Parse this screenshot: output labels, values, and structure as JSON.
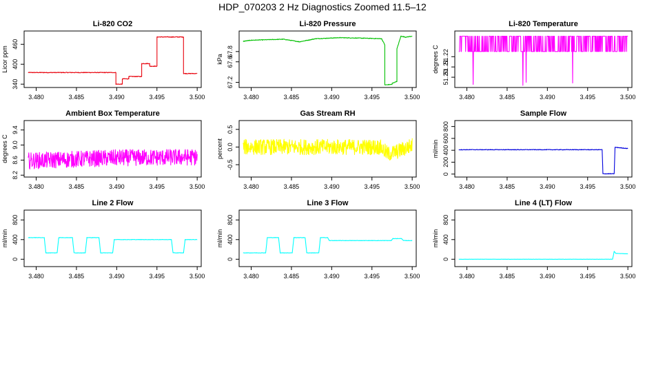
{
  "figure_title": "HDP_070203  2 Hz Diagnostics Zoomed 11.5–12",
  "chart_data": [
    {
      "type": "line",
      "title": "Li-820 CO2",
      "ylabel": "Licor ppm",
      "color": "#e8000b",
      "xlim": [
        3.4785,
        3.5005
      ],
      "xticks": [
        "3.480",
        "3.485",
        "3.490",
        "3.495",
        "3.500"
      ],
      "ylim": [
        330,
        500
      ],
      "yticks": [
        "340",
        "400",
        "460"
      ],
      "noise": 1,
      "spikes": false,
      "x": [
        3.479,
        3.4899,
        3.4899,
        3.4907,
        3.4907,
        3.4915,
        3.4915,
        3.4931,
        3.4931,
        3.4941,
        3.4941,
        3.495,
        3.495,
        3.4968,
        3.4968,
        3.4983,
        3.4983,
        3.5
      ],
      "y": [
        375,
        375,
        340,
        340,
        356,
        356,
        363,
        363,
        402,
        402,
        394,
        394,
        482,
        482,
        482,
        482,
        372,
        372
      ]
    },
    {
      "type": "line",
      "title": "Li-820 Pressure",
      "ylabel": "kPa",
      "color": "#00c000",
      "xlim": [
        3.4785,
        3.5005
      ],
      "xticks": [
        "3.480",
        "3.485",
        "3.490",
        "3.495",
        "3.500"
      ],
      "ylim": [
        67.1,
        68.2
      ],
      "yticks": [
        "67.2",
        "67.6",
        "67.8"
      ],
      "noise": 0.006,
      "spikes": false,
      "x": [
        3.479,
        3.48,
        3.484,
        3.486,
        3.488,
        3.491,
        3.494,
        3.4962,
        3.4966,
        3.4966,
        3.4975,
        3.4975,
        3.4981,
        3.4981,
        3.4986,
        3.4992,
        3.5
      ],
      "y": [
        68.0,
        68.02,
        68.04,
        67.99,
        68.05,
        68.07,
        68.06,
        68.05,
        67.93,
        67.15,
        67.16,
        67.18,
        67.22,
        67.85,
        68.1,
        68.08,
        68.1
      ]
    },
    {
      "type": "line",
      "title": "Li-820 Temperature",
      "ylabel": "degrees C",
      "color": "#ff00ff",
      "xlim": [
        3.4785,
        3.5005
      ],
      "xticks": [
        "3.480",
        "3.485",
        "3.490",
        "3.495",
        "3.500"
      ],
      "ylim": [
        51.19,
        51.245
      ],
      "yticks": [
        "51.20",
        "51.21",
        "51.22"
      ],
      "noise": 0,
      "spikes": true,
      "spike_high": 51.24,
      "spike_low": 51.225,
      "x": [
        3.479,
        3.5
      ],
      "y": [
        51.225,
        51.225
      ]
    },
    {
      "type": "line",
      "title": "Ambient Box Temperature",
      "ylabel": "degrees C",
      "color": "#ff00ff",
      "xlim": [
        3.4785,
        3.5005
      ],
      "xticks": [
        "3.480",
        "3.485",
        "3.490",
        "3.495",
        "3.500"
      ],
      "ylim": [
        8.15,
        9.65
      ],
      "yticks": [
        "8.2",
        "8.6",
        "9.0",
        "9.4"
      ],
      "noise": 0.22,
      "spikes": false,
      "x": [
        3.479,
        3.49,
        3.5
      ],
      "y": [
        8.58,
        8.66,
        8.68
      ]
    },
    {
      "type": "line",
      "title": "Gas Stream RH",
      "ylabel": "percent",
      "color": "#ffff00",
      "xlim": [
        3.4785,
        3.5005
      ],
      "xticks": [
        "3.480",
        "3.485",
        "3.490",
        "3.495",
        "3.500"
      ],
      "ylim": [
        -0.85,
        0.75
      ],
      "yticks": [
        "-0.5",
        "0.0",
        "0.5"
      ],
      "noise": 0.22,
      "spikes": false,
      "x": [
        3.479,
        3.496,
        3.497,
        3.4985,
        3.5
      ],
      "y": [
        0.0,
        0.0,
        -0.2,
        -0.1,
        0.05
      ]
    },
    {
      "type": "line",
      "title": "Sample Flow",
      "ylabel": "ml/min",
      "color": "#0000dd",
      "xlim": [
        3.4785,
        3.5005
      ],
      "xticks": [
        "3.480",
        "3.485",
        "3.490",
        "3.495",
        "3.500"
      ],
      "ylim": [
        -50,
        900
      ],
      "yticks": [
        "0",
        "200",
        "400",
        "600",
        "800"
      ],
      "noise": 5,
      "spikes": false,
      "x": [
        3.479,
        3.4968,
        3.4969,
        3.4983,
        3.4984,
        3.5
      ],
      "y": [
        410,
        410,
        5,
        5,
        450,
        430
      ]
    },
    {
      "type": "line",
      "title": "Line 2 Flow",
      "ylabel": "ml/min",
      "color": "#00ffff",
      "xlim": [
        3.4785,
        3.5005
      ],
      "xticks": [
        "3.480",
        "3.485",
        "3.490",
        "3.495",
        "3.500"
      ],
      "ylim": [
        -150,
        1000
      ],
      "yticks": [
        "0",
        "400",
        "800"
      ],
      "noise": 4,
      "spikes": false,
      "x": [
        3.479,
        3.481,
        3.4812,
        3.4826,
        3.4828,
        3.4845,
        3.4847,
        3.4861,
        3.4863,
        3.4878,
        3.488,
        3.4895,
        3.4897,
        3.4968,
        3.497,
        3.4983,
        3.4985,
        3.5
      ],
      "y": [
        440,
        440,
        130,
        130,
        440,
        440,
        130,
        130,
        440,
        440,
        130,
        130,
        400,
        400,
        130,
        130,
        400,
        400
      ]
    },
    {
      "type": "line",
      "title": "Line 3 Flow",
      "ylabel": "ml/min",
      "color": "#00ffff",
      "xlim": [
        3.4785,
        3.5005
      ],
      "xticks": [
        "3.480",
        "3.485",
        "3.490",
        "3.495",
        "3.500"
      ],
      "ylim": [
        -150,
        1000
      ],
      "yticks": [
        "0",
        "400",
        "800"
      ],
      "noise": 4,
      "spikes": false,
      "x": [
        3.479,
        3.4818,
        3.482,
        3.4834,
        3.4836,
        3.4851,
        3.4853,
        3.4867,
        3.4869,
        3.4884,
        3.4886,
        3.4895,
        3.4897,
        3.4974,
        3.4976,
        3.4987,
        3.4989,
        3.5
      ],
      "y": [
        130,
        130,
        440,
        440,
        130,
        130,
        440,
        440,
        130,
        130,
        440,
        440,
        380,
        380,
        420,
        420,
        380,
        380
      ]
    },
    {
      "type": "line",
      "title": "Line 4 (LT) Flow",
      "ylabel": "ml/min",
      "color": "#00ffff",
      "xlim": [
        3.4785,
        3.5005
      ],
      "xticks": [
        "3.480",
        "3.485",
        "3.490",
        "3.495",
        "3.500"
      ],
      "ylim": [
        -150,
        1000
      ],
      "yticks": [
        "0",
        "400",
        "800"
      ],
      "noise": 2,
      "spikes": false,
      "x": [
        3.479,
        3.4981,
        3.4983,
        3.4985,
        3.5
      ],
      "y": [
        0,
        0,
        160,
        120,
        110
      ]
    }
  ]
}
